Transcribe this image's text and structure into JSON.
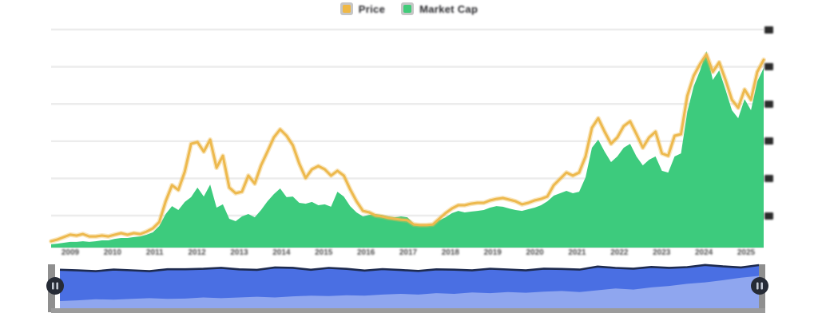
{
  "legend": {
    "items": [
      {
        "label": "Price",
        "color": "#EFB845"
      },
      {
        "label": "Market Cap",
        "color": "#41CB79"
      }
    ]
  },
  "colors": {
    "price_line": "#EDB94E",
    "price_glow": "rgba(237,185,78,0.35)",
    "marketcap_fill": "#3DCB7D",
    "gridline": "#ececec",
    "baseline": "#e2e2e2",
    "brush_fill": "#4A6FE3",
    "brush_top_line": "#1E2B4F",
    "brush_volume_fill": "#8FA6EF",
    "brush_track_gray": "#9b9b9b",
    "handle_fill": "#262B36",
    "handle_grip": "#C3C9D4"
  },
  "x_axis": {
    "labels": [
      "2009",
      "2010",
      "2011",
      "2012",
      "2013",
      "2014",
      "2015",
      "2016",
      "2017",
      "2018",
      "2019",
      "2020",
      "2021",
      "2022",
      "2023",
      "2024",
      "2025"
    ]
  },
  "y_axis": {
    "labels_clipped": true,
    "gridline_count": 6
  },
  "chart_data": {
    "type": "area",
    "title": "",
    "xlabel": "",
    "ylabel": "",
    "x_domain_note": "values are % of plot height; right-edge axis labels are clipped in source",
    "ylim": [
      0,
      100
    ],
    "grid": true,
    "legend_position": "top-center",
    "series": [
      {
        "name": "Price",
        "type": "line",
        "color": "#EDB94E",
        "values": [
          2.9,
          3.7,
          4.8,
          5.9,
          5.5,
          6.2,
          5.1,
          5.1,
          5.5,
          5.1,
          5.9,
          6.6,
          5.9,
          6.6,
          6.2,
          7.3,
          8.8,
          11.7,
          21.2,
          28.6,
          26.4,
          34.8,
          47.6,
          48.4,
          44.0,
          49.5,
          36.6,
          42.1,
          27.5,
          24.9,
          25.6,
          33.0,
          29.3,
          37.7,
          44.0,
          50.5,
          54.2,
          51.3,
          46.9,
          38.5,
          31.9,
          35.9,
          37.4,
          35.9,
          33.0,
          35.2,
          33.0,
          26.7,
          21.2,
          16.8,
          16.1,
          14.7,
          14.3,
          13.6,
          13.2,
          12.8,
          12.5,
          10.6,
          10.3,
          10.3,
          10.6,
          13.2,
          15.8,
          17.9,
          19.4,
          19.4,
          20.1,
          20.5,
          20.5,
          21.6,
          22.3,
          22.7,
          22.0,
          21.2,
          19.8,
          20.5,
          21.6,
          22.3,
          23.4,
          28.6,
          31.5,
          34.4,
          33.0,
          34.4,
          41.8,
          54.9,
          59.3,
          53.1,
          47.6,
          50.5,
          55.7,
          57.9,
          52.0,
          45.8,
          50.5,
          53.1,
          43.2,
          42.1,
          51.3,
          52.0,
          69.6,
          78.8,
          84.2,
          88.6,
          80.6,
          85.0,
          76.9,
          67.8,
          64.1,
          72.5,
          67.8,
          80.6,
          86.1
        ]
      },
      {
        "name": "Market Cap",
        "type": "area",
        "color": "#3DCB7D",
        "values": [
          1.5,
          1.8,
          2.2,
          2.6,
          2.6,
          2.9,
          2.6,
          2.9,
          3.3,
          3.3,
          4.0,
          4.4,
          4.4,
          4.8,
          5.1,
          5.9,
          7.0,
          9.9,
          15.4,
          19.0,
          17.2,
          20.9,
          23.1,
          27.5,
          23.4,
          28.9,
          18.3,
          19.8,
          13.2,
          12.1,
          14.3,
          15.4,
          13.9,
          17.2,
          21.2,
          24.5,
          27.1,
          23.1,
          23.4,
          20.5,
          20.1,
          20.9,
          19.4,
          19.8,
          18.7,
          25.6,
          23.4,
          19.0,
          16.1,
          14.3,
          15.0,
          15.4,
          15.0,
          14.3,
          13.9,
          14.3,
          13.9,
          11.0,
          10.3,
          10.3,
          11.0,
          12.5,
          13.9,
          15.8,
          16.8,
          16.1,
          16.5,
          16.8,
          17.2,
          18.3,
          19.0,
          18.7,
          17.9,
          17.2,
          16.8,
          17.6,
          18.3,
          19.4,
          21.2,
          23.8,
          24.9,
          26.0,
          24.9,
          25.6,
          32.2,
          45.8,
          49.5,
          44.0,
          39.2,
          41.8,
          45.8,
          47.6,
          41.8,
          37.7,
          40.3,
          41.8,
          35.2,
          34.4,
          41.8,
          43.2,
          62.3,
          74.0,
          81.3,
          90.1,
          76.9,
          81.3,
          72.5,
          63.0,
          59.3,
          68.1,
          63.0,
          76.2,
          82.4
        ]
      }
    ],
    "brush": {
      "name": "range-selector",
      "volume_values": [
        20,
        22,
        25,
        24,
        26,
        28,
        26,
        27,
        30,
        28,
        30,
        32,
        30,
        33,
        35,
        34,
        36,
        35,
        38,
        40,
        38,
        42,
        40,
        44,
        42,
        45,
        43,
        46,
        48,
        45,
        50,
        55,
        52,
        58,
        62,
        68,
        72,
        78,
        85,
        90
      ]
    }
  }
}
